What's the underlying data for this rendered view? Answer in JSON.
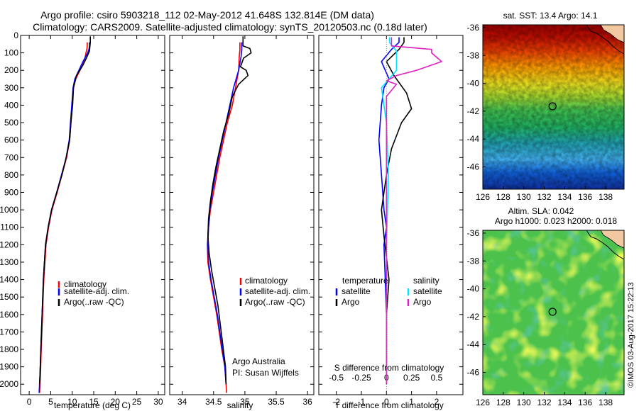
{
  "figure": {
    "title_line1": "Argo profile: csiro 5903218_112 02-May-2012 41.648S 132.814E (DM data)",
    "title_line2": "Climatology: CARS2009. Satellite-adjusted climatology: synTS_20120503.nc (0.18d later)",
    "credit": "©IMOS 03-Aug-2017 15:22:13",
    "argo_australia": "Argo Australia",
    "pi": "PI: Susan Wijffels",
    "colors": {
      "climatology": "#ff0000",
      "satellite": "#0000ff",
      "argo": "#000000",
      "sal_satellite": "#00e5ff",
      "sal_argo": "#e020c0"
    }
  },
  "chart_data": [
    {
      "type": "line",
      "id": "temperature_profile",
      "xlabel": "temperature (deg C)",
      "ylabel": "",
      "xlim": [
        -2,
        31.5
      ],
      "ylim": [
        2060,
        0
      ],
      "x_ticks": [
        0,
        5,
        10,
        15,
        20,
        25,
        30
      ],
      "y_ticks": [
        0,
        100,
        200,
        300,
        400,
        500,
        600,
        700,
        800,
        900,
        1000,
        1100,
        1200,
        1300,
        1400,
        1500,
        1600,
        1700,
        1800,
        1900,
        2000
      ],
      "legend": [
        "climatology",
        "satellite-adj. clim.",
        "Argo(..raw -QC)"
      ],
      "legend_loc": "lower-right",
      "series": [
        {
          "name": "climatology",
          "color": "#ff0000",
          "x": [
            13.5,
            13.5,
            13.4,
            13.2,
            12.8,
            10.8,
            10.3,
            10.0,
            9.7,
            9.4,
            8.7,
            7.6,
            6.5,
            5.3,
            4.5,
            3.9,
            3.4,
            3.1,
            2.8,
            2.6,
            2.5,
            2.4
          ],
          "y": [
            40,
            60,
            80,
            100,
            150,
            250,
            300,
            400,
            500,
            600,
            700,
            800,
            900,
            1000,
            1100,
            1200,
            1400,
            1600,
            1800,
            1950,
            2000,
            2050
          ]
        },
        {
          "name": "satellite-adj. clim.",
          "color": "#0000ff",
          "x": [
            14.0,
            14.0,
            13.9,
            13.6,
            12.5,
            10.6,
            10.2,
            9.9,
            9.6,
            9.3,
            8.6,
            7.5,
            6.4,
            5.2,
            4.4,
            3.8,
            3.3,
            3.0,
            2.7,
            2.5,
            2.4,
            2.3
          ],
          "y": [
            40,
            60,
            80,
            100,
            150,
            250,
            300,
            400,
            500,
            600,
            700,
            800,
            900,
            1000,
            1100,
            1200,
            1400,
            1600,
            1800,
            1950,
            2000,
            2050
          ]
        },
        {
          "name": "Argo(..raw -QC)",
          "color": "#000000",
          "x": [
            14.2,
            14.2,
            14.0,
            13.3,
            12.5,
            11.0,
            10.3,
            10.1,
            9.7,
            9.4,
            8.6,
            7.6,
            6.4,
            5.2,
            4.4,
            3.8,
            3.3,
            3.0,
            2.7,
            2.5,
            2.4
          ],
          "y": [
            5,
            40,
            90,
            130,
            170,
            230,
            300,
            400,
            500,
            600,
            700,
            800,
            900,
            1000,
            1100,
            1200,
            1400,
            1600,
            1800,
            1950,
            2000
          ]
        }
      ]
    },
    {
      "type": "line",
      "id": "salinity_profile",
      "xlabel": "salinity",
      "xlim": [
        33.8,
        36.1
      ],
      "ylim": [
        2060,
        0
      ],
      "x_ticks": [
        34,
        34.5,
        35,
        35.5,
        36
      ],
      "x_tick_labels": [
        "34",
        "34.5",
        "35",
        "35.5",
        "36"
      ],
      "legend": [
        "climatology",
        "satellite-adj. clim.",
        "Argo(..raw -QC)"
      ],
      "legend_loc": "lower-right",
      "series": [
        {
          "name": "climatology",
          "color": "#ff0000",
          "x": [
            34.92,
            34.92,
            34.91,
            34.9,
            34.85,
            34.8,
            34.72,
            34.66,
            34.6,
            34.55,
            34.5,
            34.45,
            34.42,
            34.4,
            34.41,
            34.45,
            34.55,
            34.63,
            34.68,
            34.7,
            34.71
          ],
          "y": [
            40,
            80,
            120,
            200,
            300,
            400,
            500,
            600,
            700,
            800,
            900,
            1000,
            1100,
            1200,
            1300,
            1400,
            1600,
            1800,
            1900,
            2000,
            2050
          ]
        },
        {
          "name": "satellite-adj. clim.",
          "color": "#0000ff",
          "x": [
            34.95,
            34.95,
            34.94,
            34.9,
            34.82,
            34.76,
            34.7,
            34.64,
            34.58,
            34.53,
            34.48,
            34.44,
            34.42,
            34.41,
            34.42,
            34.46,
            34.56,
            34.64,
            34.68,
            34.7
          ],
          "y": [
            40,
            80,
            120,
            200,
            300,
            400,
            500,
            600,
            700,
            800,
            900,
            1000,
            1100,
            1200,
            1300,
            1400,
            1600,
            1800,
            1900,
            2000
          ]
        },
        {
          "name": "Argo(..raw -QC)",
          "color": "#000000",
          "x": [
            34.97,
            34.97,
            35.08,
            35.1,
            34.98,
            34.93,
            35.02,
            35.05,
            34.9,
            34.8,
            34.74,
            34.66,
            34.6,
            34.54,
            34.49,
            34.45,
            34.42,
            34.41,
            34.43,
            34.47,
            34.57,
            34.64,
            34.69,
            34.7
          ],
          "y": [
            5,
            60,
            75,
            100,
            130,
            180,
            200,
            230,
            280,
            350,
            450,
            550,
            650,
            750,
            850,
            950,
            1050,
            1150,
            1250,
            1350,
            1550,
            1750,
            1900,
            2000
          ]
        }
      ]
    },
    {
      "type": "line",
      "id": "difference_profile",
      "xlabel": "T difference from climatology",
      "xlabel_top": "S difference from climatology",
      "xlim": [
        -2.7,
        3.05
      ],
      "ylim": [
        2060,
        0
      ],
      "x_ticks": [
        -2,
        -1,
        0,
        1,
        2
      ],
      "x_tick_labels": [
        "-2",
        "-1",
        "0",
        "1",
        "2"
      ],
      "x_ticks_top": [
        -0.5,
        -0.25,
        0,
        0.25,
        0.5
      ],
      "x_tick_labels_top": [
        "-0.5",
        "-0.25",
        "0",
        "0.25",
        "0.5"
      ],
      "legend_titles": [
        "temperature",
        "salinity"
      ],
      "legend": [
        "satellite",
        "Argo",
        "satellite",
        "Argo"
      ],
      "series": [
        {
          "name": "satellite",
          "group": "temperature",
          "color": "#0000ff",
          "x": [
            0.5,
            0.5,
            0.2,
            -0.2,
            0.1,
            -0.1,
            -0.2,
            -0.3,
            -0.2,
            -0.1,
            0.0,
            -0.1,
            -0.05,
            0.0,
            0.0,
            0.0
          ],
          "y": [
            10,
            40,
            80,
            150,
            250,
            300,
            400,
            600,
            800,
            1000,
            1100,
            1200,
            1400,
            1600,
            1800,
            2000
          ]
        },
        {
          "name": "Argo",
          "group": "temperature",
          "color": "#000000",
          "x": [
            0.7,
            0.7,
            0.5,
            0.0,
            0.3,
            0.8,
            1.0,
            0.6,
            0.2,
            0.0,
            -0.2,
            -0.1,
            0.1,
            0.0,
            0.0,
            0.0
          ],
          "y": [
            10,
            40,
            80,
            150,
            230,
            330,
            420,
            500,
            650,
            800,
            1000,
            1150,
            1400,
            1600,
            1800,
            2000
          ]
        },
        {
          "name": "satellite",
          "group": "salinity",
          "color": "#00e5ff",
          "x": [
            0.03,
            0.03,
            0.1,
            0.1,
            -0.05,
            0.0,
            0.02,
            0.0,
            0.0,
            0.0
          ],
          "y": [
            10,
            40,
            90,
            200,
            300,
            500,
            800,
            1200,
            1600,
            2000
          ]
        },
        {
          "name": "Argo",
          "group": "salinity",
          "color": "#e020c0",
          "x": [
            0.05,
            0.05,
            0.45,
            0.45,
            0.55,
            0.3,
            0.1,
            0.0,
            0.1,
            0.0,
            0.0,
            0.0
          ],
          "y": [
            10,
            60,
            80,
            100,
            150,
            200,
            230,
            260,
            280,
            350,
            600,
            2000
          ]
        }
      ]
    },
    {
      "type": "heatmap",
      "id": "sst_map",
      "title": "sat. SST: 13.4  Argo: 14.1",
      "x_ticks": [
        126,
        128,
        130,
        132,
        134,
        136,
        138
      ],
      "y_ticks": [
        -36,
        -38,
        -40,
        -42,
        -44,
        -46
      ],
      "xlim": [
        126,
        139.8
      ],
      "ylim": [
        -47.6,
        -35.8
      ],
      "marker": {
        "lon": 132.814,
        "lat": -41.648
      }
    },
    {
      "type": "heatmap",
      "id": "sla_map",
      "title_line1": "Altim. SLA: 0.042",
      "title_line2": "Argo h1000: 0.023 h2000: 0.018",
      "x_ticks": [
        126,
        128,
        130,
        132,
        134,
        136,
        138
      ],
      "y_ticks": [
        -36,
        -38,
        -40,
        -42,
        -44,
        -46
      ],
      "xlim": [
        126,
        139.8
      ],
      "ylim": [
        -47.6,
        -35.8
      ],
      "marker": {
        "lon": 132.814,
        "lat": -41.648
      }
    }
  ]
}
